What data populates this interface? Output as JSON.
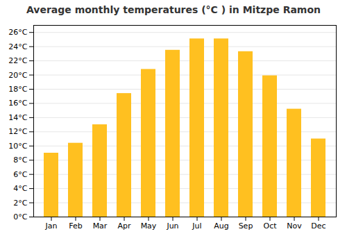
{
  "chart_data": {
    "type": "bar",
    "title": "Average monthly temperatures (°C ) in Mitzpe Ramon",
    "categories": [
      "Jan",
      "Feb",
      "Mar",
      "Apr",
      "May",
      "Jun",
      "Jul",
      "Aug",
      "Sep",
      "Oct",
      "Nov",
      "Dec"
    ],
    "values": [
      9.0,
      10.4,
      13.0,
      17.4,
      20.8,
      23.5,
      25.1,
      25.1,
      23.3,
      19.9,
      15.2,
      11.0
    ],
    "color": "#FFC020",
    "ylim": [
      0,
      27
    ],
    "yticks": [
      {
        "value": 0,
        "label": "0°C"
      },
      {
        "value": 2,
        "label": "2°C"
      },
      {
        "value": 4,
        "label": "4°C"
      },
      {
        "value": 6,
        "label": "6°C"
      },
      {
        "value": 8,
        "label": "8°C"
      },
      {
        "value": 10,
        "label": "10°C"
      },
      {
        "value": 12,
        "label": "12°C"
      },
      {
        "value": 14,
        "label": "14°C"
      },
      {
        "value": 16,
        "label": "16°C"
      },
      {
        "value": 18,
        "label": "18°C"
      },
      {
        "value": 20,
        "label": "20°C"
      },
      {
        "value": 22,
        "label": "22°C"
      },
      {
        "value": 24,
        "label": "24°C"
      },
      {
        "value": 26,
        "label": "26°C"
      }
    ],
    "grid": true
  }
}
